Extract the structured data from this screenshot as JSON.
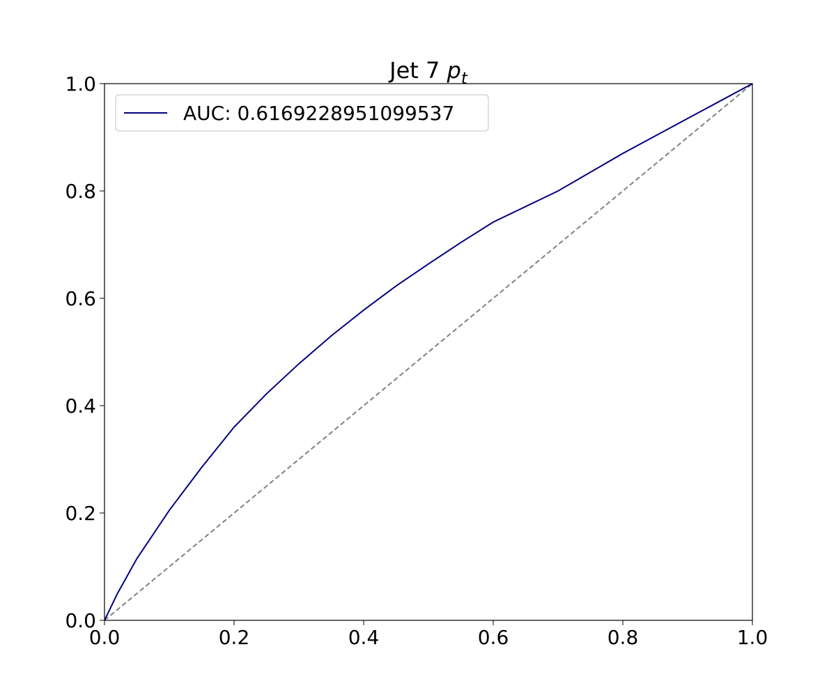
{
  "chart_data": {
    "type": "line",
    "title": [
      "Jet 7 ",
      "p",
      "t"
    ],
    "x": [
      0,
      0.02,
      0.05,
      0.1,
      0.15,
      0.2,
      0.25,
      0.3,
      0.35,
      0.4,
      0.45,
      0.5,
      0.55,
      0.6,
      0.7,
      0.8,
      0.9,
      1
    ],
    "series": [
      {
        "name": "AUC: 0.6169228951099537",
        "color": "#000080",
        "values": [
          0,
          0.05,
          0.115,
          0.205,
          0.285,
          0.36,
          0.422,
          0.478,
          0.53,
          0.578,
          0.623,
          0.664,
          0.704,
          0.742,
          0.8,
          0.87,
          0.935,
          1
        ]
      }
    ],
    "reference_line": {
      "x": [
        0,
        1
      ],
      "values": [
        0,
        1
      ],
      "color": "#808080",
      "dash": true
    },
    "xlim": [
      0,
      1
    ],
    "ylim": [
      0,
      1
    ],
    "xticks": [
      {
        "value": 0,
        "label": "0.0"
      },
      {
        "value": 0.2,
        "label": "0.2"
      },
      {
        "value": 0.4,
        "label": "0.4"
      },
      {
        "value": 0.6,
        "label": "0.6"
      },
      {
        "value": 0.8,
        "label": "0.8"
      },
      {
        "value": 1,
        "label": "1.0"
      }
    ],
    "yticks": [
      {
        "value": 0,
        "label": "0.0"
      },
      {
        "value": 0.2,
        "label": "0.2"
      },
      {
        "value": 0.4,
        "label": "0.4"
      },
      {
        "value": 0.6,
        "label": "0.6"
      },
      {
        "value": 0.8,
        "label": "0.8"
      },
      {
        "value": 1,
        "label": "1.0"
      }
    ],
    "grid": false,
    "legend": "upper left"
  }
}
